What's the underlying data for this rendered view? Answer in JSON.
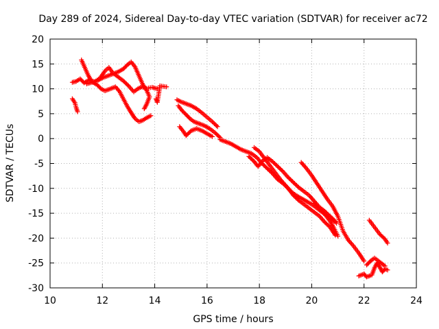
{
  "chart_data": {
    "type": "scatter",
    "title": "Day 289 of 2024, Sidereal Day-to-day VTEC variation (SDTVAR) for receiver ac72",
    "xlabel": "GPS time / hours",
    "ylabel": "SDTVAR / TECUs",
    "xlim": [
      10,
      24
    ],
    "ylim": [
      -30,
      20
    ],
    "xticks": [
      "10",
      "12",
      "14",
      "16",
      "18",
      "20",
      "22",
      "24"
    ],
    "yticks": [
      "20",
      "15",
      "10",
      "5",
      "0",
      "-5",
      "-10",
      "-15",
      "-20",
      "-25",
      "-30"
    ],
    "grid": true,
    "marker": "+",
    "marker_color": "#ff0000",
    "tracks": [
      {
        "name": "track-1",
        "points": [
          [
            10.85,
            11.3
          ],
          [
            11.0,
            11.5
          ],
          [
            11.15,
            12.0
          ],
          [
            11.3,
            11.2
          ],
          [
            11.5,
            11.8
          ],
          [
            11.7,
            11.4
          ],
          [
            11.9,
            12.1
          ],
          [
            12.1,
            13.6
          ],
          [
            12.25,
            14.3
          ],
          [
            12.4,
            13.2
          ],
          [
            12.6,
            12.4
          ],
          [
            12.8,
            11.6
          ],
          [
            13.0,
            10.6
          ],
          [
            13.2,
            9.4
          ],
          [
            13.35,
            10.0
          ],
          [
            13.5,
            10.4
          ],
          [
            13.7,
            10.1
          ],
          [
            13.9,
            10.3
          ],
          [
            14.1,
            10.0
          ]
        ]
      },
      {
        "name": "track-2",
        "points": [
          [
            11.2,
            15.8
          ],
          [
            11.3,
            14.6
          ],
          [
            11.45,
            12.8
          ],
          [
            11.6,
            11.4
          ],
          [
            11.8,
            10.8
          ],
          [
            11.95,
            10.0
          ],
          [
            12.1,
            9.6
          ],
          [
            12.3,
            10.0
          ],
          [
            12.5,
            10.4
          ],
          [
            12.65,
            9.5
          ],
          [
            12.8,
            8.0
          ],
          [
            12.95,
            6.5
          ],
          [
            13.1,
            5.2
          ],
          [
            13.25,
            4.0
          ],
          [
            13.4,
            3.4
          ],
          [
            13.55,
            3.7
          ],
          [
            13.7,
            4.2
          ],
          [
            13.85,
            4.6
          ]
        ]
      },
      {
        "name": "track-3",
        "points": [
          [
            11.4,
            11.0
          ],
          [
            11.6,
            11.3
          ],
          [
            11.8,
            11.6
          ],
          [
            12.0,
            12.2
          ],
          [
            12.2,
            12.6
          ],
          [
            12.4,
            13.0
          ],
          [
            12.6,
            13.4
          ],
          [
            12.8,
            14.0
          ],
          [
            12.95,
            14.8
          ],
          [
            13.1,
            15.4
          ],
          [
            13.25,
            14.4
          ],
          [
            13.4,
            12.6
          ],
          [
            13.55,
            10.8
          ],
          [
            13.7,
            9.6
          ],
          [
            13.8,
            8.4
          ],
          [
            13.7,
            7.0
          ],
          [
            13.6,
            6.0
          ]
        ]
      },
      {
        "name": "track-4",
        "points": [
          [
            10.85,
            8.0
          ],
          [
            10.95,
            7.2
          ],
          [
            11.0,
            6.2
          ],
          [
            11.05,
            5.4
          ]
        ]
      },
      {
        "name": "track-5",
        "points": [
          [
            14.05,
            8.0
          ],
          [
            14.1,
            7.3
          ],
          [
            14.2,
            10.6
          ],
          [
            14.45,
            10.4
          ]
        ]
      },
      {
        "name": "track-6",
        "points": [
          [
            14.85,
            7.8
          ],
          [
            15.0,
            7.4
          ],
          [
            15.2,
            7.0
          ],
          [
            15.4,
            6.6
          ],
          [
            15.6,
            6.0
          ],
          [
            15.8,
            5.2
          ],
          [
            16.0,
            4.3
          ],
          [
            16.2,
            3.4
          ],
          [
            16.4,
            2.4
          ]
        ]
      },
      {
        "name": "track-7",
        "points": [
          [
            14.9,
            6.6
          ],
          [
            15.05,
            5.6
          ],
          [
            15.2,
            4.8
          ],
          [
            15.35,
            4.0
          ],
          [
            15.5,
            3.4
          ],
          [
            15.7,
            3.0
          ],
          [
            15.9,
            2.6
          ],
          [
            16.1,
            2.0
          ],
          [
            16.3,
            1.2
          ],
          [
            16.5,
            0.2
          ]
        ]
      },
      {
        "name": "track-8",
        "points": [
          [
            14.95,
            2.4
          ],
          [
            15.1,
            1.4
          ],
          [
            15.2,
            0.6
          ],
          [
            15.4,
            1.6
          ],
          [
            15.6,
            2.0
          ],
          [
            15.8,
            1.6
          ],
          [
            16.0,
            1.0
          ],
          [
            16.2,
            0.4
          ]
        ]
      },
      {
        "name": "track-9",
        "points": [
          [
            16.5,
            -0.2
          ],
          [
            16.7,
            -0.6
          ],
          [
            16.9,
            -1.0
          ],
          [
            17.1,
            -1.6
          ],
          [
            17.3,
            -2.2
          ],
          [
            17.5,
            -2.6
          ],
          [
            17.7,
            -3.0
          ],
          [
            17.9,
            -3.8
          ],
          [
            18.1,
            -5.0
          ],
          [
            18.3,
            -6.0
          ],
          [
            18.5,
            -7.0
          ],
          [
            18.7,
            -8.2
          ],
          [
            18.9,
            -9.0
          ],
          [
            19.1,
            -10.0
          ],
          [
            19.3,
            -11.4
          ],
          [
            19.5,
            -12.4
          ],
          [
            19.7,
            -13.2
          ],
          [
            19.9,
            -14.0
          ],
          [
            20.1,
            -14.8
          ],
          [
            20.3,
            -15.6
          ],
          [
            20.5,
            -16.8
          ],
          [
            20.7,
            -17.8
          ],
          [
            20.9,
            -19.4
          ]
        ]
      },
      {
        "name": "track-10",
        "points": [
          [
            17.8,
            -1.8
          ],
          [
            18.0,
            -2.6
          ],
          [
            18.2,
            -4.0
          ],
          [
            18.4,
            -5.4
          ],
          [
            18.6,
            -6.8
          ],
          [
            18.8,
            -8.2
          ],
          [
            19.0,
            -9.4
          ],
          [
            19.2,
            -10.6
          ],
          [
            19.4,
            -11.4
          ],
          [
            19.6,
            -12.0
          ],
          [
            19.8,
            -12.6
          ],
          [
            20.0,
            -13.2
          ],
          [
            20.2,
            -14.0
          ],
          [
            20.4,
            -14.8
          ],
          [
            20.6,
            -15.6
          ],
          [
            20.8,
            -16.4
          ],
          [
            20.95,
            -17.0
          ]
        ]
      },
      {
        "name": "track-11",
        "points": [
          [
            17.6,
            -3.6
          ],
          [
            17.8,
            -4.6
          ],
          [
            17.95,
            -5.6
          ],
          [
            18.1,
            -4.6
          ],
          [
            18.3,
            -3.8
          ],
          [
            18.5,
            -4.6
          ],
          [
            18.7,
            -5.6
          ],
          [
            18.9,
            -6.6
          ],
          [
            19.1,
            -7.8
          ],
          [
            19.3,
            -8.8
          ],
          [
            19.5,
            -9.8
          ],
          [
            19.7,
            -10.6
          ],
          [
            19.9,
            -11.4
          ],
          [
            20.1,
            -12.6
          ],
          [
            20.3,
            -13.8
          ],
          [
            20.5,
            -14.6
          ],
          [
            20.7,
            -15.6
          ],
          [
            20.9,
            -16.6
          ]
        ]
      },
      {
        "name": "track-12",
        "points": [
          [
            19.6,
            -4.8
          ],
          [
            19.8,
            -6.0
          ],
          [
            20.0,
            -7.4
          ],
          [
            20.2,
            -9.0
          ],
          [
            20.4,
            -10.6
          ],
          [
            20.6,
            -12.2
          ],
          [
            20.8,
            -13.6
          ],
          [
            21.0,
            -15.6
          ],
          [
            21.2,
            -18.6
          ],
          [
            21.4,
            -20.4
          ],
          [
            21.6,
            -21.6
          ],
          [
            21.8,
            -23.0
          ],
          [
            22.0,
            -24.6
          ]
        ]
      },
      {
        "name": "track-13",
        "points": [
          [
            20.1,
            -13.0
          ],
          [
            20.3,
            -14.0
          ],
          [
            20.5,
            -15.2
          ],
          [
            20.7,
            -16.6
          ],
          [
            20.85,
            -18.0
          ],
          [
            21.0,
            -19.6
          ]
        ]
      },
      {
        "name": "track-14",
        "points": [
          [
            22.2,
            -16.4
          ],
          [
            22.4,
            -17.8
          ],
          [
            22.6,
            -19.2
          ],
          [
            22.8,
            -20.2
          ],
          [
            22.9,
            -21.0
          ]
        ]
      },
      {
        "name": "track-15",
        "points": [
          [
            21.8,
            -27.6
          ],
          [
            22.0,
            -27.2
          ],
          [
            22.1,
            -27.8
          ],
          [
            22.3,
            -27.4
          ],
          [
            22.4,
            -26.0
          ],
          [
            22.5,
            -25.0
          ],
          [
            22.6,
            -25.8
          ],
          [
            22.7,
            -26.8
          ],
          [
            22.8,
            -26.2
          ],
          [
            22.9,
            -26.4
          ]
        ]
      },
      {
        "name": "track-16",
        "points": [
          [
            22.1,
            -25.4
          ],
          [
            22.25,
            -24.6
          ],
          [
            22.4,
            -24.0
          ],
          [
            22.55,
            -24.6
          ],
          [
            22.7,
            -25.2
          ],
          [
            22.8,
            -25.6
          ]
        ]
      }
    ]
  }
}
